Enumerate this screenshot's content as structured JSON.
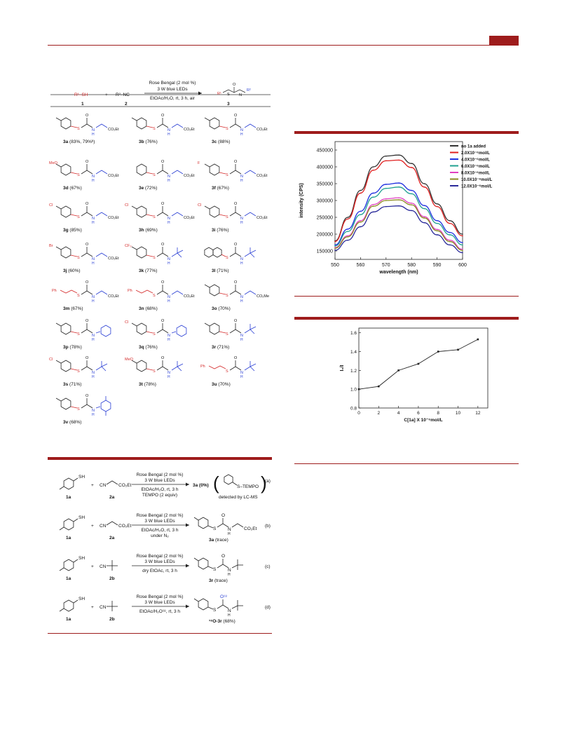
{
  "colors": {
    "accent": "#9e1c1c",
    "red": "#d42a2a",
    "blue": "#2a3fd4"
  },
  "scheme2": {
    "header": {
      "r1sh": "R¹–SH",
      "plus": "+",
      "r2nc": "R²–NC",
      "cond1": "Rose Bengal (2 mol %)",
      "cond2": "3 W  blue LEDs",
      "cond3": "EtOAc/H₂O, rt, 3 h, air",
      "n1": "1",
      "n2": "2",
      "n3": "3"
    },
    "products": [
      {
        "id": "3a",
        "yield": "(83%, 79%ᵇ)"
      },
      {
        "id": "3b",
        "yield": "(76%)"
      },
      {
        "id": "3c",
        "yield": "(88%)"
      },
      {
        "id": "3d",
        "yield": "(67%)"
      },
      {
        "id": "3e",
        "yield": "(72%)"
      },
      {
        "id": "3f",
        "yield": "(67%)"
      },
      {
        "id": "3g",
        "yield": "(85%)"
      },
      {
        "id": "3h",
        "yield": "(69%)"
      },
      {
        "id": "3i",
        "yield": "(76%)"
      },
      {
        "id": "3j",
        "yield": "(60%)"
      },
      {
        "id": "3k",
        "yield": "(77%)"
      },
      {
        "id": "3l",
        "yield": "(71%)"
      },
      {
        "id": "3m",
        "yield": "(67%)"
      },
      {
        "id": "3n",
        "yield": "(68%)"
      },
      {
        "id": "3o",
        "yield": "(70%)"
      },
      {
        "id": "3p",
        "yield": "(78%)"
      },
      {
        "id": "3q",
        "yield": "(76%)"
      },
      {
        "id": "3r",
        "yield": "(71%)"
      },
      {
        "id": "3s",
        "yield": "(71%)"
      },
      {
        "id": "3t",
        "yield": "(78%)"
      },
      {
        "id": "3u",
        "yield": "(70%)"
      },
      {
        "id": "3v",
        "yield": "(68%)"
      }
    ],
    "groups": {
      "co2et": "CO₂Et",
      "co2me": "CO₂Me",
      "meo": "MeO",
      "f": "F",
      "cl": "Cl",
      "br": "Br",
      "cf3": "CF₃",
      "ph": "Ph",
      "s": "S",
      "o": "O",
      "n": "N",
      "h": "H"
    }
  },
  "scheme3": {
    "rows": [
      {
        "tag": "(a)",
        "c1": "Rose Bengal (2 mol %)",
        "c2": "3 W blue LEDs",
        "c3": "EtOAc/H₂O, rt, 3 h",
        "c4": "TEMPO (2 equiv)",
        "product": "3a (0%)",
        "extra": "S–TEMPO",
        "note": "detected by LC-MS",
        "r1": "1a",
        "r2": "2a"
      },
      {
        "tag": "(b)",
        "c1": "Rose Bengal (2 mol %)",
        "c2": "3 W blue LEDs",
        "c3": "EtOAc/H₂O, rt, 3 h",
        "c4": "under N₂",
        "product": "3a (trace)",
        "r1": "1a",
        "r2": "2a"
      },
      {
        "tag": "(c)",
        "c1": "Rose Bengal (2 mol %)",
        "c2": "3 W blue LEDs",
        "c3": "dry EtOAc, rt, 3 h",
        "c4": "",
        "product": "3r (trace)",
        "r1": "1a",
        "r2": "2b"
      },
      {
        "tag": "(d)",
        "c1": "Rose Bengal (2 mol %)",
        "c2": "3 W blue LEDs",
        "c3": "EtOAc/H₂O¹⁸, rt, 3 h",
        "c4": "",
        "product": "¹⁸O-3r (68%)",
        "r1": "1a",
        "r2": "2b"
      }
    ],
    "sh": "SH",
    "cn": "CN",
    "co2et": "CO₂Et",
    "plus": "+",
    "o18": "O¹⁸"
  },
  "chart_data": [
    {
      "type": "line",
      "xlabel": "wavelength (nm)",
      "ylabel": "intensity (CPS)",
      "xlim": [
        550,
        600
      ],
      "ylim": [
        125000,
        475000
      ],
      "xticks": [
        550,
        560,
        570,
        580,
        590,
        600
      ],
      "yticks": [
        150000,
        200000,
        250000,
        300000,
        350000,
        400000,
        450000
      ],
      "x": [
        550,
        555,
        560,
        565,
        570,
        575,
        580,
        585,
        590,
        595,
        600
      ],
      "legend_position": "top-right",
      "series": [
        {
          "name": "no 1a added",
          "color": "#333333",
          "values": [
            180000,
            250000,
            330000,
            400000,
            432000,
            435000,
            410000,
            350000,
            290000,
            240000,
            200000
          ]
        },
        {
          "name": "2.0X10⁻⁶mol/L",
          "color": "#e02020",
          "values": [
            178000,
            245000,
            322000,
            390000,
            418000,
            420000,
            398000,
            340000,
            282000,
            232000,
            195000
          ]
        },
        {
          "name": "4.0X10⁻⁶mol/L",
          "color": "#2030e0",
          "values": [
            168000,
            215000,
            268000,
            322000,
            348000,
            352000,
            330000,
            285000,
            240000,
            205000,
            175000
          ]
        },
        {
          "name": "6.0X10⁻⁶mol/L",
          "color": "#20a090",
          "values": [
            165000,
            208000,
            258000,
            310000,
            336000,
            340000,
            320000,
            276000,
            232000,
            198000,
            168000
          ]
        },
        {
          "name": "8.0X10⁻⁶mol/L",
          "color": "#e040c0",
          "values": [
            160000,
            195000,
            240000,
            288000,
            305000,
            308000,
            292000,
            252000,
            214000,
            182000,
            155000
          ]
        },
        {
          "name": "10.0X10⁻⁶mol/L",
          "color": "#8a8a20",
          "values": [
            158000,
            192000,
            236000,
            283000,
            300000,
            302000,
            287000,
            248000,
            210000,
            178000,
            152000
          ]
        },
        {
          "name": "12.0X10⁻⁶mol/L",
          "color": "#2a2a9a",
          "values": [
            152000,
            182000,
            222000,
            266000,
            282000,
            284000,
            270000,
            234000,
            198000,
            168000,
            145000
          ]
        }
      ]
    },
    {
      "type": "line",
      "xlabel": "C[1a] X 10⁻⁶mol/L",
      "ylabel": "I₀/I",
      "xlim": [
        0,
        13
      ],
      "ylim": [
        0.8,
        1.65
      ],
      "xticks": [
        0,
        2,
        4,
        6,
        8,
        10,
        12
      ],
      "yticks": [
        0.8,
        1.0,
        1.2,
        1.4,
        1.6
      ],
      "x": [
        0,
        2,
        4,
        6,
        8,
        10,
        12
      ],
      "series": [
        {
          "values": [
            1.0,
            1.03,
            1.2,
            1.27,
            1.4,
            1.42,
            1.53
          ]
        }
      ]
    }
  ]
}
